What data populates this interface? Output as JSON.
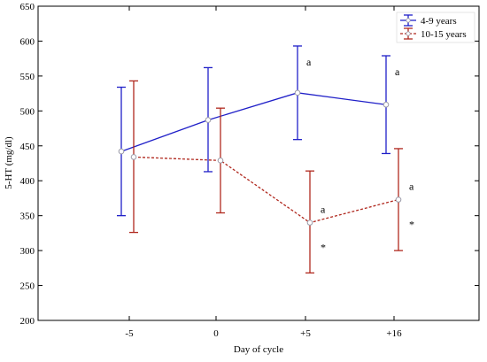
{
  "chart_data": {
    "type": "line",
    "title": "",
    "xlabel": "Day of cycle",
    "ylabel": "5-HT (mg/dl)",
    "categories": [
      "-5",
      "0",
      "+5",
      "+16"
    ],
    "ylim": [
      200,
      650
    ],
    "yticks": [
      200,
      250,
      300,
      350,
      400,
      450,
      500,
      550,
      600,
      650
    ],
    "grid": false,
    "legend_position": "top-right",
    "series": [
      {
        "name": "4-9 years",
        "color": "#1f1fc8",
        "line_style": "solid",
        "values": [
          442,
          487,
          526,
          509
        ],
        "lower": [
          350,
          413,
          459,
          439
        ],
        "upper": [
          534,
          562,
          593,
          579
        ]
      },
      {
        "name": "10-15 years",
        "color": "#b0281e",
        "line_style": "dashed",
        "values": [
          434,
          429,
          340,
          373
        ],
        "lower": [
          326,
          354,
          268,
          300
        ],
        "upper": [
          543,
          504,
          414,
          446
        ]
      }
    ],
    "annotations": [
      {
        "series": 0,
        "category": 2,
        "text": "a",
        "pos": "upper-right"
      },
      {
        "series": 0,
        "category": 3,
        "text": "a",
        "pos": "upper-right"
      },
      {
        "series": 1,
        "category": 2,
        "text": "a",
        "pos": "right"
      },
      {
        "series": 1,
        "category": 2,
        "text": "*",
        "pos": "below-right"
      },
      {
        "series": 1,
        "category": 3,
        "text": "a",
        "pos": "right"
      },
      {
        "series": 1,
        "category": 3,
        "text": "*",
        "pos": "below-right"
      }
    ]
  }
}
